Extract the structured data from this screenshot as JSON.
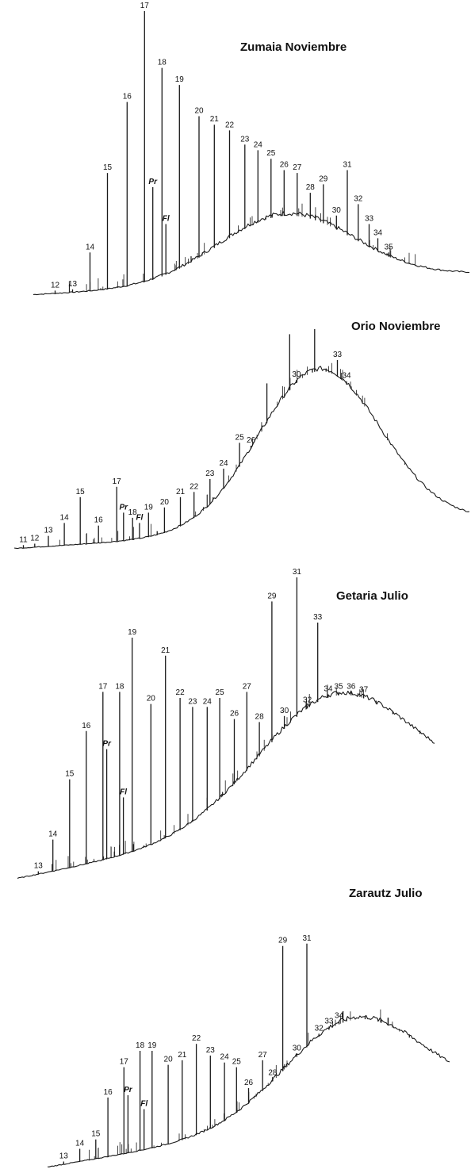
{
  "chart_data": [
    {
      "type": "line",
      "title": "Zumaia Noviembre",
      "peaks": [
        {
          "label": "12",
          "rt": 0.05,
          "h": 0.01
        },
        {
          "label": "13",
          "rt": 0.09,
          "h": 0.02
        },
        {
          "label": "14",
          "rt": 0.13,
          "h": 0.15
        },
        {
          "label": "15",
          "rt": 0.17,
          "h": 0.43
        },
        {
          "label": "16",
          "rt": 0.215,
          "h": 0.68
        },
        {
          "label": "17",
          "rt": 0.255,
          "h": 1.0
        },
        {
          "label": "Pr",
          "rt": 0.274,
          "h": 0.38
        },
        {
          "label": "18",
          "rt": 0.295,
          "h": 0.8
        },
        {
          "label": "Fl",
          "rt": 0.304,
          "h": 0.25
        },
        {
          "label": "19",
          "rt": 0.335,
          "h": 0.74
        },
        {
          "label": "20",
          "rt": 0.38,
          "h": 0.63
        },
        {
          "label": "21",
          "rt": 0.415,
          "h": 0.6
        },
        {
          "label": "22",
          "rt": 0.45,
          "h": 0.58
        },
        {
          "label": "23",
          "rt": 0.485,
          "h": 0.53
        },
        {
          "label": "24",
          "rt": 0.515,
          "h": 0.51
        },
        {
          "label": "25",
          "rt": 0.545,
          "h": 0.48
        },
        {
          "label": "26",
          "rt": 0.575,
          "h": 0.44
        },
        {
          "label": "27",
          "rt": 0.605,
          "h": 0.43
        },
        {
          "label": "28",
          "rt": 0.635,
          "h": 0.36
        },
        {
          "label": "29",
          "rt": 0.665,
          "h": 0.39
        },
        {
          "label": "30",
          "rt": 0.695,
          "h": 0.28
        },
        {
          "label": "31",
          "rt": 0.72,
          "h": 0.44
        },
        {
          "label": "32",
          "rt": 0.745,
          "h": 0.32
        },
        {
          "label": "33",
          "rt": 0.77,
          "h": 0.25
        },
        {
          "label": "34",
          "rt": 0.79,
          "h": 0.2
        },
        {
          "label": "35",
          "rt": 0.815,
          "h": 0.15
        }
      ]
    },
    {
      "type": "line",
      "title": "Orio Noviembre",
      "peaks": [
        {
          "label": "11",
          "rt": 0.02,
          "h": 0.01
        },
        {
          "label": "12",
          "rt": 0.045,
          "h": 0.02
        },
        {
          "label": "13",
          "rt": 0.075,
          "h": 0.05
        },
        {
          "label": "14",
          "rt": 0.11,
          "h": 0.1
        },
        {
          "label": "15",
          "rt": 0.145,
          "h": 0.2
        },
        {
          "label": "16",
          "rt": 0.185,
          "h": 0.09
        },
        {
          "label": "17",
          "rt": 0.225,
          "h": 0.24
        },
        {
          "label": "Pr",
          "rt": 0.24,
          "h": 0.14
        },
        {
          "label": "18",
          "rt": 0.26,
          "h": 0.12
        },
        {
          "label": "Fl",
          "rt": 0.275,
          "h": 0.1
        },
        {
          "label": "19",
          "rt": 0.295,
          "h": 0.14
        },
        {
          "label": "20",
          "rt": 0.33,
          "h": 0.16
        },
        {
          "label": "21",
          "rt": 0.365,
          "h": 0.2
        },
        {
          "label": "22",
          "rt": 0.395,
          "h": 0.22
        },
        {
          "label": "23",
          "rt": 0.43,
          "h": 0.27
        },
        {
          "label": "24",
          "rt": 0.46,
          "h": 0.31
        },
        {
          "label": "25",
          "rt": 0.495,
          "h": 0.41
        },
        {
          "label": "26",
          "rt": 0.52,
          "h": 0.3
        },
        {
          "label": "",
          "rt": 0.555,
          "h": 0.64
        },
        {
          "label": "",
          "rt": 0.605,
          "h": 0.83
        },
        {
          "label": "30",
          "rt": 0.62,
          "h": 0.5
        },
        {
          "label": "",
          "rt": 0.655,
          "h": 0.66
        },
        {
          "label": "",
          "rt": 0.66,
          "h": 0.85
        },
        {
          "label": "",
          "rt": 0.685,
          "h": 0.6
        },
        {
          "label": "33",
          "rt": 0.71,
          "h": 0.73
        },
        {
          "label": "34",
          "rt": 0.73,
          "h": 0.52
        }
      ]
    },
    {
      "type": "line",
      "title": "Getaria Julio",
      "peaks": [
        {
          "label": "13",
          "rt": 0.05,
          "h": 0.02
        },
        {
          "label": "14",
          "rt": 0.085,
          "h": 0.13
        },
        {
          "label": "15",
          "rt": 0.125,
          "h": 0.33
        },
        {
          "label": "16",
          "rt": 0.165,
          "h": 0.49
        },
        {
          "label": "17",
          "rt": 0.205,
          "h": 0.62
        },
        {
          "label": "Pr",
          "rt": 0.214,
          "h": 0.43
        },
        {
          "label": "18",
          "rt": 0.245,
          "h": 0.62
        },
        {
          "label": "Fl",
          "rt": 0.254,
          "h": 0.27
        },
        {
          "label": "19",
          "rt": 0.275,
          "h": 0.8
        },
        {
          "label": "20",
          "rt": 0.32,
          "h": 0.58
        },
        {
          "label": "21",
          "rt": 0.355,
          "h": 0.74
        },
        {
          "label": "22",
          "rt": 0.39,
          "h": 0.6
        },
        {
          "label": "23",
          "rt": 0.42,
          "h": 0.57
        },
        {
          "label": "24",
          "rt": 0.455,
          "h": 0.57
        },
        {
          "label": "25",
          "rt": 0.485,
          "h": 0.6
        },
        {
          "label": "26",
          "rt": 0.52,
          "h": 0.53
        },
        {
          "label": "27",
          "rt": 0.55,
          "h": 0.62
        },
        {
          "label": "28",
          "rt": 0.58,
          "h": 0.52
        },
        {
          "label": "29",
          "rt": 0.61,
          "h": 0.92
        },
        {
          "label": "30",
          "rt": 0.64,
          "h": 0.54
        },
        {
          "label": "31",
          "rt": 0.67,
          "h": 1.0
        },
        {
          "label": "32",
          "rt": 0.695,
          "h": 0.51
        },
        {
          "label": "33",
          "rt": 0.72,
          "h": 0.85
        },
        {
          "label": "34",
          "rt": 0.745,
          "h": 0.56
        },
        {
          "label": "35",
          "rt": 0.77,
          "h": 0.5
        },
        {
          "label": "36",
          "rt": 0.8,
          "h": 0.42
        },
        {
          "label": "37",
          "rt": 0.83,
          "h": 0.38
        },
        {
          "label": "",
          "rt": 0.86,
          "h": 0.27
        },
        {
          "label": "",
          "rt": 0.9,
          "h": 0.26
        },
        {
          "label": "",
          "rt": 0.965,
          "h": 0.33
        }
      ]
    },
    {
      "type": "line",
      "title": "Zarautz Julio",
      "peaks": [
        {
          "label": "13",
          "rt": 0.04,
          "h": 0.02
        },
        {
          "label": "14",
          "rt": 0.08,
          "h": 0.08
        },
        {
          "label": "15",
          "rt": 0.12,
          "h": 0.12
        },
        {
          "label": "16",
          "rt": 0.15,
          "h": 0.3
        },
        {
          "label": "17",
          "rt": 0.19,
          "h": 0.43
        },
        {
          "label": "Pr",
          "rt": 0.2,
          "h": 0.31
        },
        {
          "label": "18",
          "rt": 0.23,
          "h": 0.5
        },
        {
          "label": "Fl",
          "rt": 0.24,
          "h": 0.25
        },
        {
          "label": "19",
          "rt": 0.26,
          "h": 0.5
        },
        {
          "label": "20",
          "rt": 0.3,
          "h": 0.44
        },
        {
          "label": "21",
          "rt": 0.335,
          "h": 0.46
        },
        {
          "label": "22",
          "rt": 0.37,
          "h": 0.53
        },
        {
          "label": "23",
          "rt": 0.405,
          "h": 0.48
        },
        {
          "label": "24",
          "rt": 0.44,
          "h": 0.45
        },
        {
          "label": "25",
          "rt": 0.47,
          "h": 0.43
        },
        {
          "label": "26",
          "rt": 0.5,
          "h": 0.34
        },
        {
          "label": "27",
          "rt": 0.535,
          "h": 0.46
        },
        {
          "label": "28",
          "rt": 0.56,
          "h": 0.33
        },
        {
          "label": "29",
          "rt": 0.585,
          "h": 0.95
        },
        {
          "label": "30",
          "rt": 0.62,
          "h": 0.33
        },
        {
          "label": "31",
          "rt": 0.645,
          "h": 0.96
        },
        {
          "label": "32",
          "rt": 0.675,
          "h": 0.34
        },
        {
          "label": "33",
          "rt": 0.7,
          "h": 0.55
        },
        {
          "label": "34",
          "rt": 0.725,
          "h": 0.39
        },
        {
          "label": "",
          "rt": 0.735,
          "h": 0.67
        },
        {
          "label": "",
          "rt": 0.79,
          "h": 0.25
        },
        {
          "label": "",
          "rt": 0.83,
          "h": 0.12
        },
        {
          "label": "",
          "rt": 0.9,
          "h": 0.08
        }
      ]
    }
  ],
  "colors": {
    "trace": "#1a1a1a",
    "background": "#ffffff"
  }
}
